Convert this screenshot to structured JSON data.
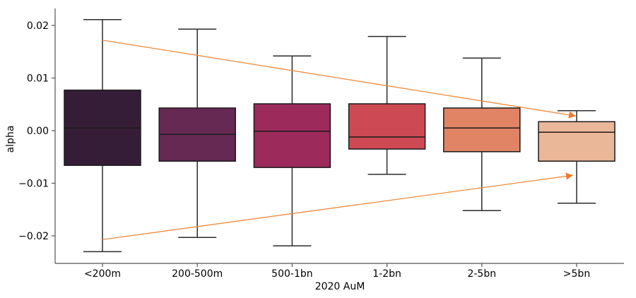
{
  "chart_data": {
    "type": "box",
    "title": "",
    "xlabel": "2020 AuM",
    "ylabel": "alpha",
    "ylim": [
      -0.0253,
      0.0232
    ],
    "yticks": [
      0.02,
      0.01,
      0.0,
      -0.01,
      -0.02
    ],
    "ytick_labels": [
      "0.02",
      "0.01",
      "0.00",
      "−0.01",
      "−0.02"
    ],
    "grid": false,
    "categories": [
      "<200m",
      "200-500m",
      "500-1bn",
      "1-2bn",
      "2-5bn",
      ">5bn"
    ],
    "series": [
      {
        "name": "<200m",
        "whisker_high": 0.0211,
        "q3": 0.0077,
        "median": 0.0005,
        "q1": -0.0066,
        "whisker_low": -0.023,
        "color": "#351d37"
      },
      {
        "name": "200-500m",
        "whisker_high": 0.0193,
        "q3": 0.0043,
        "median": -0.0007,
        "q1": -0.0058,
        "whisker_low": -0.0203,
        "color": "#662953"
      },
      {
        "name": "500-1bn",
        "whisker_high": 0.0142,
        "q3": 0.0051,
        "median": -0.0001,
        "q1": -0.007,
        "whisker_low": -0.0219,
        "color": "#9c2a5a"
      },
      {
        "name": "1-2bn",
        "whisker_high": 0.0179,
        "q3": 0.0051,
        "median": -0.0012,
        "q1": -0.0035,
        "whisker_low": -0.0083,
        "color": "#cd4a55"
      },
      {
        "name": "2-5bn",
        "whisker_high": 0.0138,
        "q3": 0.0043,
        "median": 0.0005,
        "q1": -0.004,
        "whisker_low": -0.0152,
        "color": "#e18466"
      },
      {
        "name": ">5bn",
        "whisker_high": 0.0038,
        "q3": 0.0017,
        "median": -0.0003,
        "q1": -0.0058,
        "whisker_low": -0.0138,
        "color": "#ebb799"
      }
    ],
    "annotations": [
      {
        "type": "arrow",
        "from": {
          "category": "<200m",
          "y": 0.0172
        },
        "to": {
          "category": ">5bn",
          "y": 0.0028
        },
        "color": "#f08a3c"
      },
      {
        "type": "arrow",
        "from": {
          "category": "<200m",
          "y": -0.0207
        },
        "to": {
          "category": ">5bn",
          "y": -0.0085
        },
        "color": "#f08a3c"
      }
    ]
  }
}
